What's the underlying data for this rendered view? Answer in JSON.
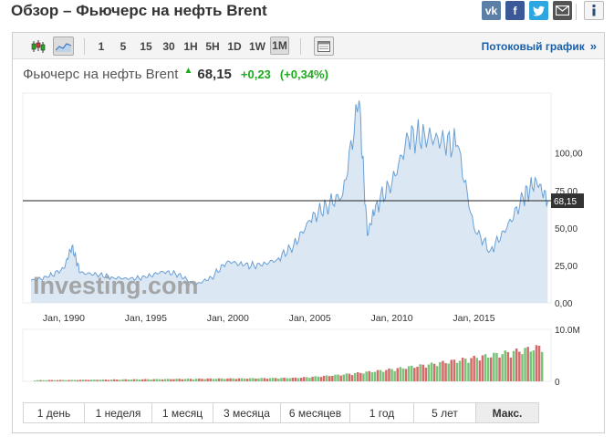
{
  "page": {
    "title": "Обзор – Фьючерс на нефть Brent"
  },
  "share": {
    "vk_label": "vk",
    "fb_label": "f",
    "tw_label": "t"
  },
  "toolbar": {
    "intervals": [
      "1",
      "5",
      "15",
      "30",
      "1H",
      "5H",
      "1D",
      "1W",
      "1M"
    ],
    "active_interval": "1M",
    "stream_link": "Потоковый график",
    "stream_arrow": "»"
  },
  "quote": {
    "name": "Фьючерс на нефть Brent",
    "price": "68,15",
    "change": "+0,23",
    "change_pct": "(+0,34%)",
    "direction": "up"
  },
  "chart_data": {
    "type": "area",
    "x": [
      "1988",
      "1989",
      "1990",
      "1990.5",
      "1991",
      "1992",
      "1993",
      "1994",
      "1995",
      "1996",
      "1997",
      "1998",
      "1999",
      "2000",
      "2001",
      "2002",
      "2003",
      "2004",
      "2005",
      "2006",
      "2007",
      "2008.0",
      "2008.5",
      "2009",
      "2010",
      "2011",
      "2012",
      "2013",
      "2014",
      "2015",
      "2016",
      "2017",
      "2018",
      "2018.8",
      "2019.5"
    ],
    "values": [
      15,
      17,
      23,
      38,
      20,
      19,
      17,
      16,
      17,
      21,
      19,
      12,
      17,
      28,
      25,
      25,
      29,
      38,
      55,
      65,
      72,
      135,
      45,
      65,
      80,
      110,
      112,
      108,
      105,
      50,
      35,
      50,
      70,
      82,
      68
    ],
    "last_price": "68,15",
    "xlim": [
      1987.5,
      2019.7
    ],
    "ylim": [
      0,
      140
    ],
    "y_ticks": [
      "0,00",
      "25,00",
      "50,00",
      "75,00",
      "100,00"
    ],
    "x_ticks": [
      "Jan, 1990",
      "Jan, 1995",
      "Jan, 2000",
      "Jan, 2005",
      "Jan, 2010",
      "Jan, 2015"
    ],
    "volume_ticks": [
      "10.0M",
      "0"
    ],
    "watermark": "Investing.com",
    "colors": {
      "line": "#6a9fd4",
      "fill": "#dbe8f4",
      "vol_up": "#7bc27b",
      "vol_down": "#d46a6a"
    },
    "grid": false,
    "legend": "none"
  },
  "range_buttons": [
    "1 день",
    "1 неделя",
    "1 месяц",
    "3 месяца",
    "6 месяцев",
    "1 год",
    "5 лет",
    "Макс."
  ],
  "active_range": "Макс."
}
